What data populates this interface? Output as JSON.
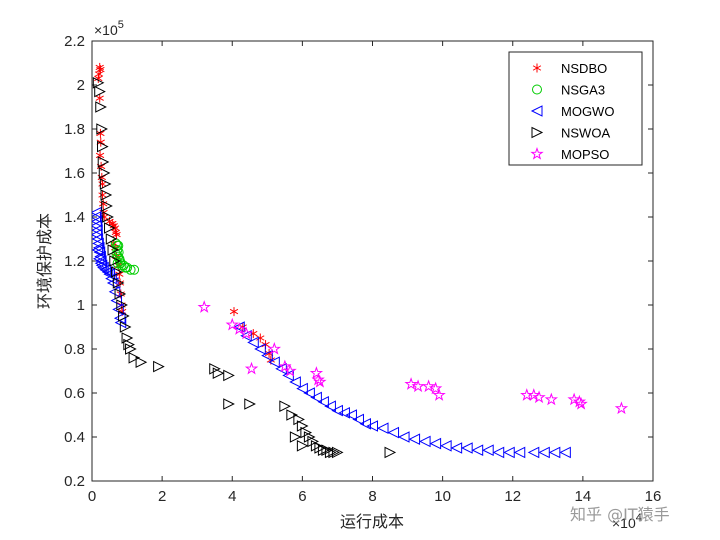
{
  "chart_data": {
    "type": "scatter",
    "xlabel": "运行成本",
    "ylabel": "环境保护成本",
    "x_multiplier": "×10",
    "x_exponent": "4",
    "y_multiplier": "×10",
    "y_exponent": "5",
    "xlim": [
      0,
      16
    ],
    "ylim": [
      0.2,
      2.2
    ],
    "x_ticks": [
      0,
      2,
      4,
      6,
      8,
      10,
      12,
      14,
      16
    ],
    "x_tick_labels": [
      "0",
      "2",
      "4",
      "6",
      "8",
      "10",
      "12",
      "14",
      "16"
    ],
    "y_ticks": [
      0.2,
      0.4,
      0.6,
      0.8,
      1,
      1.2,
      1.4,
      1.6,
      1.8,
      2,
      2.2
    ],
    "y_tick_labels": [
      "0.2",
      "0.4",
      "0.6",
      "0.8",
      "1",
      "1.2",
      "1.4",
      "1.6",
      "1.8",
      "2",
      "2.2"
    ],
    "grid": false,
    "legend_position": "top-right",
    "series": [
      {
        "name": "NSDBO",
        "marker": "asterisk",
        "color": "#ff0000",
        "points": [
          [
            0.22,
            2.08
          ],
          [
            0.24,
            2.07
          ],
          [
            0.2,
            2.05
          ],
          [
            0.18,
            2.03
          ],
          [
            0.22,
            1.94
          ],
          [
            0.24,
            1.78
          ],
          [
            0.25,
            1.74
          ],
          [
            0.23,
            1.68
          ],
          [
            0.26,
            1.63
          ],
          [
            0.28,
            1.58
          ],
          [
            0.3,
            1.55
          ],
          [
            0.3,
            1.5
          ],
          [
            0.32,
            1.46
          ],
          [
            0.33,
            1.42
          ],
          [
            0.35,
            1.4
          ],
          [
            0.5,
            1.38
          ],
          [
            0.58,
            1.37
          ],
          [
            0.62,
            1.36
          ],
          [
            0.66,
            1.35
          ],
          [
            0.68,
            1.33
          ],
          [
            0.7,
            1.32
          ],
          [
            0.62,
            1.28
          ],
          [
            0.66,
            1.26
          ],
          [
            0.7,
            1.22
          ],
          [
            0.75,
            1.18
          ],
          [
            0.78,
            1.14
          ],
          [
            0.8,
            1.1
          ],
          [
            0.82,
            1.05
          ],
          [
            0.84,
            1.0
          ],
          [
            0.86,
            0.97
          ],
          [
            4.05,
            0.97
          ],
          [
            4.3,
            0.9
          ],
          [
            4.6,
            0.87
          ],
          [
            4.8,
            0.85
          ],
          [
            4.95,
            0.82
          ],
          [
            5.05,
            0.78
          ],
          [
            5.1,
            0.75
          ]
        ]
      },
      {
        "name": "NSGA3",
        "marker": "circle",
        "color": "#00cc00",
        "points": [
          [
            0.68,
            1.28
          ],
          [
            0.72,
            1.27
          ],
          [
            0.75,
            1.27
          ],
          [
            0.72,
            1.25
          ],
          [
            0.76,
            1.24
          ],
          [
            0.74,
            1.22
          ],
          [
            0.78,
            1.21
          ],
          [
            0.8,
            1.2
          ],
          [
            0.82,
            1.19
          ],
          [
            0.84,
            1.18
          ],
          [
            0.9,
            1.18
          ],
          [
            1.0,
            1.17
          ],
          [
            1.1,
            1.16
          ],
          [
            1.2,
            1.16
          ],
          [
            0.95,
            1.17
          ],
          [
            0.7,
            1.23
          ],
          [
            0.73,
            1.19
          ]
        ]
      },
      {
        "name": "MOGWO",
        "marker": "triangle-left",
        "color": "#0000ff",
        "points": [
          [
            0.12,
            1.42
          ],
          [
            0.1,
            1.4
          ],
          [
            0.14,
            1.38
          ],
          [
            0.12,
            1.36
          ],
          [
            0.15,
            1.34
          ],
          [
            0.13,
            1.32
          ],
          [
            0.16,
            1.3
          ],
          [
            0.18,
            1.28
          ],
          [
            0.2,
            1.26
          ],
          [
            0.22,
            1.24
          ],
          [
            0.24,
            1.22
          ],
          [
            0.26,
            1.2
          ],
          [
            0.28,
            1.18
          ],
          [
            0.32,
            1.17
          ],
          [
            0.38,
            1.16
          ],
          [
            0.45,
            1.15
          ],
          [
            0.5,
            1.14
          ],
          [
            0.55,
            1.12
          ],
          [
            0.6,
            1.1
          ],
          [
            0.65,
            1.06
          ],
          [
            0.7,
            1.02
          ],
          [
            0.75,
            0.98
          ],
          [
            0.8,
            0.94
          ],
          [
            0.82,
            0.92
          ],
          [
            0.16,
            1.25
          ],
          [
            0.2,
            1.21
          ],
          [
            0.25,
            1.19
          ],
          [
            4.2,
            0.9
          ],
          [
            4.4,
            0.86
          ],
          [
            4.6,
            0.83
          ],
          [
            4.8,
            0.8
          ],
          [
            5.0,
            0.77
          ],
          [
            5.2,
            0.74
          ],
          [
            5.4,
            0.71
          ],
          [
            5.6,
            0.68
          ],
          [
            5.8,
            0.65
          ],
          [
            6.0,
            0.62
          ],
          [
            6.2,
            0.6
          ],
          [
            6.4,
            0.58
          ],
          [
            6.6,
            0.56
          ],
          [
            6.8,
            0.54
          ],
          [
            7.0,
            0.52
          ],
          [
            7.2,
            0.51
          ],
          [
            7.4,
            0.5
          ],
          [
            7.6,
            0.48
          ],
          [
            7.8,
            0.46
          ],
          [
            8.0,
            0.45
          ],
          [
            8.3,
            0.44
          ],
          [
            8.6,
            0.42
          ],
          [
            8.9,
            0.4
          ],
          [
            9.2,
            0.39
          ],
          [
            9.5,
            0.38
          ],
          [
            9.8,
            0.37
          ],
          [
            10.1,
            0.36
          ],
          [
            10.4,
            0.35
          ],
          [
            10.7,
            0.35
          ],
          [
            11.0,
            0.34
          ],
          [
            11.3,
            0.34
          ],
          [
            11.6,
            0.33
          ],
          [
            11.9,
            0.33
          ],
          [
            12.2,
            0.33
          ],
          [
            12.6,
            0.33
          ],
          [
            12.9,
            0.33
          ],
          [
            13.2,
            0.33
          ],
          [
            13.5,
            0.33
          ]
        ]
      },
      {
        "name": "NSWOA",
        "marker": "triangle-right",
        "color": "#000000",
        "points": [
          [
            0.18,
            2.01
          ],
          [
            0.22,
            1.97
          ],
          [
            0.25,
            1.9
          ],
          [
            0.28,
            1.8
          ],
          [
            0.3,
            1.72
          ],
          [
            0.32,
            1.65
          ],
          [
            0.35,
            1.6
          ],
          [
            0.38,
            1.55
          ],
          [
            0.4,
            1.5
          ],
          [
            0.42,
            1.45
          ],
          [
            0.45,
            1.4
          ],
          [
            0.5,
            1.35
          ],
          [
            0.55,
            1.3
          ],
          [
            0.6,
            1.25
          ],
          [
            0.65,
            1.2
          ],
          [
            0.7,
            1.15
          ],
          [
            0.75,
            1.1
          ],
          [
            0.8,
            1.05
          ],
          [
            0.85,
            1.0
          ],
          [
            0.9,
            0.95
          ],
          [
            0.95,
            0.9
          ],
          [
            1.0,
            0.85
          ],
          [
            1.05,
            0.82
          ],
          [
            1.1,
            0.8
          ],
          [
            1.2,
            0.76
          ],
          [
            1.4,
            0.74
          ],
          [
            1.9,
            0.72
          ],
          [
            3.5,
            0.71
          ],
          [
            3.6,
            0.69
          ],
          [
            3.9,
            0.68
          ],
          [
            3.9,
            0.55
          ],
          [
            4.5,
            0.55
          ],
          [
            5.5,
            0.54
          ],
          [
            5.7,
            0.5
          ],
          [
            5.9,
            0.48
          ],
          [
            6.0,
            0.45
          ],
          [
            6.1,
            0.42
          ],
          [
            6.2,
            0.4
          ],
          [
            6.3,
            0.38
          ],
          [
            6.4,
            0.36
          ],
          [
            6.5,
            0.35
          ],
          [
            6.6,
            0.34
          ],
          [
            6.7,
            0.34
          ],
          [
            6.8,
            0.33
          ],
          [
            6.9,
            0.33
          ],
          [
            7.0,
            0.33
          ],
          [
            8.5,
            0.33
          ],
          [
            6.0,
            0.36
          ],
          [
            5.8,
            0.4
          ]
        ]
      },
      {
        "name": "MOPSO",
        "marker": "pentagram",
        "color": "#ff00ff",
        "points": [
          [
            3.2,
            0.99
          ],
          [
            4.0,
            0.91
          ],
          [
            4.2,
            0.89
          ],
          [
            4.4,
            0.87
          ],
          [
            4.55,
            0.71
          ],
          [
            5.2,
            0.8
          ],
          [
            5.5,
            0.72
          ],
          [
            5.65,
            0.7
          ],
          [
            6.4,
            0.69
          ],
          [
            6.45,
            0.66
          ],
          [
            6.5,
            0.65
          ],
          [
            9.1,
            0.64
          ],
          [
            9.3,
            0.63
          ],
          [
            9.6,
            0.63
          ],
          [
            9.8,
            0.62
          ],
          [
            9.9,
            0.59
          ],
          [
            12.4,
            0.59
          ],
          [
            12.6,
            0.59
          ],
          [
            12.75,
            0.58
          ],
          [
            13.1,
            0.57
          ],
          [
            13.75,
            0.57
          ],
          [
            13.9,
            0.56
          ],
          [
            13.95,
            0.55
          ],
          [
            15.1,
            0.53
          ]
        ]
      }
    ]
  },
  "watermark": "知乎 @IT猿手"
}
